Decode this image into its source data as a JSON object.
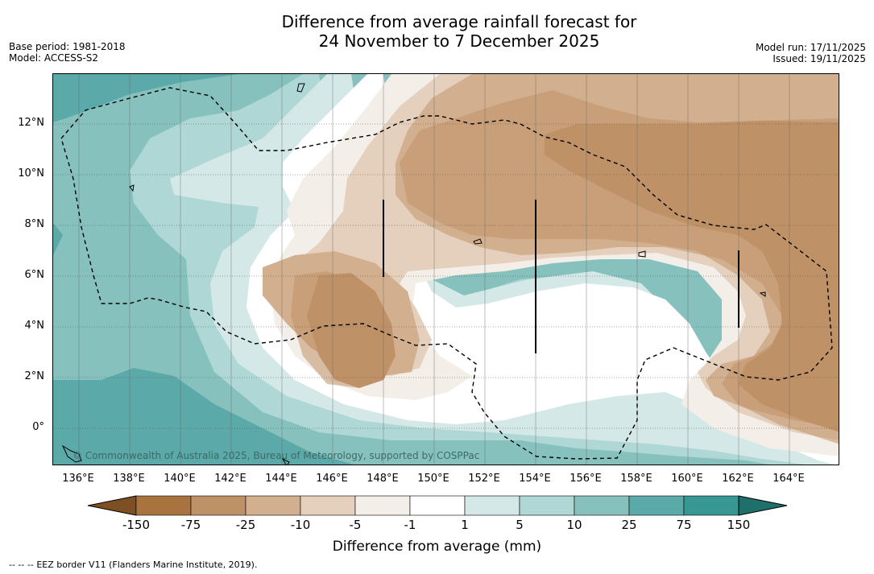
{
  "header": {
    "title_line1": "Difference from average rainfall forecast for",
    "title_line2": "24 November to 7 December 2025",
    "base_period": "Base period: 1981-2018",
    "model": "Model: ACCESS-S2",
    "model_run": "Model run: 17/11/2025",
    "issued": "Issued: 19/11/2025"
  },
  "map": {
    "copyright": "© Commonwealth of Australia 2025, Bureau of Meteorology, supported by COSPPac",
    "lat_labels": [
      "12°N",
      "10°N",
      "8°N",
      "6°N",
      "4°N",
      "2°N",
      "0°"
    ],
    "lon_labels": [
      "136°E",
      "138°E",
      "140°E",
      "142°E",
      "144°E",
      "146°E",
      "148°E",
      "150°E",
      "152°E",
      "154°E",
      "156°E",
      "158°E",
      "160°E",
      "162°E",
      "164°E"
    ]
  },
  "colorbar": {
    "tick_labels": [
      "-150",
      "-75",
      "-25",
      "-10",
      "-5",
      "-1",
      "1",
      "5",
      "10",
      "25",
      "75",
      "150"
    ],
    "colors": [
      "#7d4f23",
      "#a8733f",
      "#bf9167",
      "#d2b08f",
      "#e4d0bd",
      "#f3eee8",
      "#ffffff",
      "#d4e9e7",
      "#afd7d5",
      "#86c1be",
      "#5ba9a8",
      "#379793",
      "#1f6f6b"
    ],
    "axis_label": "Difference from average (mm)"
  },
  "footer": {
    "legend_symbol": "-- -- --",
    "legend_text": "EEZ border V11 (Flanders Marine Institute, 2019)."
  }
}
